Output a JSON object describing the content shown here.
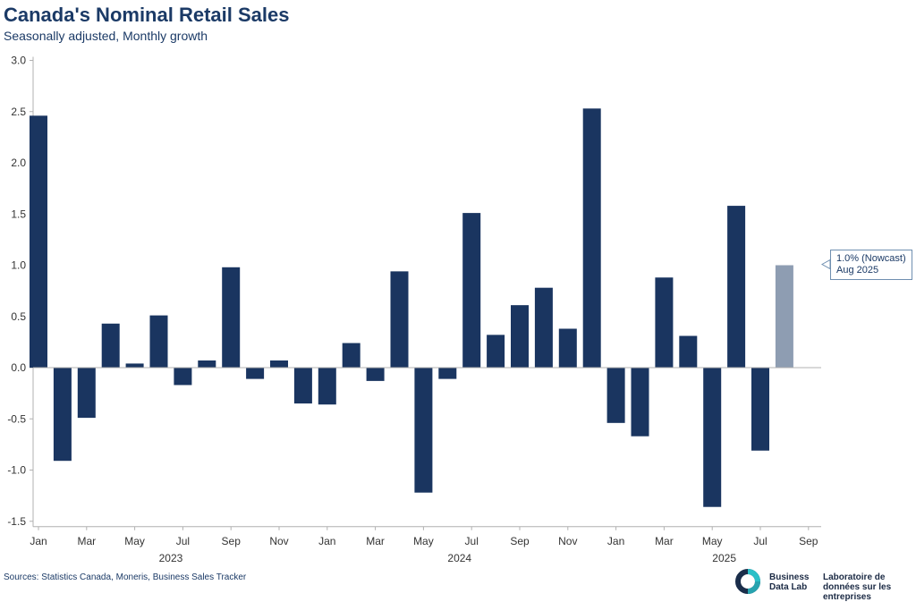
{
  "chart_data": {
    "type": "bar",
    "title": "Canada's Nominal Retail Sales",
    "subtitle": "Seasonally adjusted, Monthly growth",
    "ylim": [
      -1.5,
      3.0
    ],
    "yticks": [
      "3.0",
      "2.5",
      "2.0",
      "1.5",
      "1.0",
      "0.5",
      "0.0",
      "-0.5",
      "-1.0",
      "-1.5"
    ],
    "ytick_values": [
      3.0,
      2.5,
      2.0,
      1.5,
      1.0,
      0.5,
      0.0,
      -0.5,
      -1.0,
      -1.5
    ],
    "x_tick_labels": [
      "Jan",
      "Mar",
      "May",
      "Jul",
      "Sep",
      "Nov",
      "Jan",
      "Mar",
      "May",
      "Jul",
      "Sep",
      "Nov",
      "Jan",
      "Mar",
      "May",
      "Jul",
      "Sep"
    ],
    "x_tick_index": [
      0,
      2,
      4,
      6,
      8,
      10,
      12,
      14,
      16,
      18,
      20,
      22,
      24,
      26,
      28,
      30,
      32
    ],
    "year_labels": [
      {
        "label": "2023",
        "index": 5.5
      },
      {
        "label": "2024",
        "index": 17.5
      },
      {
        "label": "2025",
        "index": 28.5
      }
    ],
    "categories": [
      "Jan 2023",
      "Feb 2023",
      "Mar 2023",
      "Apr 2023",
      "May 2023",
      "Jun 2023",
      "Jul 2023",
      "Aug 2023",
      "Sep 2023",
      "Oct 2023",
      "Nov 2023",
      "Dec 2023",
      "Jan 2024",
      "Feb 2024",
      "Mar 2024",
      "Apr 2024",
      "May 2024",
      "Jun 2024",
      "Jul 2024",
      "Aug 2024",
      "Sep 2024",
      "Oct 2024",
      "Nov 2024",
      "Dec 2024",
      "Jan 2025",
      "Feb 2025",
      "Mar 2025",
      "Apr 2025",
      "May 2025",
      "Jun 2025",
      "Jul 2025",
      "Aug 2025"
    ],
    "values": [
      2.46,
      -0.91,
      -0.49,
      0.43,
      0.04,
      0.51,
      -0.17,
      0.07,
      0.98,
      -0.11,
      0.07,
      -0.35,
      -0.36,
      0.24,
      -0.13,
      0.94,
      -1.22,
      -0.11,
      1.51,
      0.32,
      0.61,
      0.78,
      0.38,
      2.53,
      -0.54,
      -0.67,
      0.88,
      0.31,
      -1.36,
      1.58,
      -0.81,
      1.0
    ],
    "nowcast_index": 31,
    "colors": {
      "actual": "#1a3560",
      "nowcast": "#8e9db2",
      "axis": "#b0b0b0",
      "text": "#333333"
    },
    "annotation": {
      "line1": "1.0% (Nowcast)",
      "line2": "Aug 2025"
    }
  },
  "footer": {
    "source": "Sources: Statistics Canada, Moneris, Business Sales Tracker",
    "logo_en": "Business Data Lab",
    "logo_fr": "Laboratoire de données sur les entreprises"
  }
}
